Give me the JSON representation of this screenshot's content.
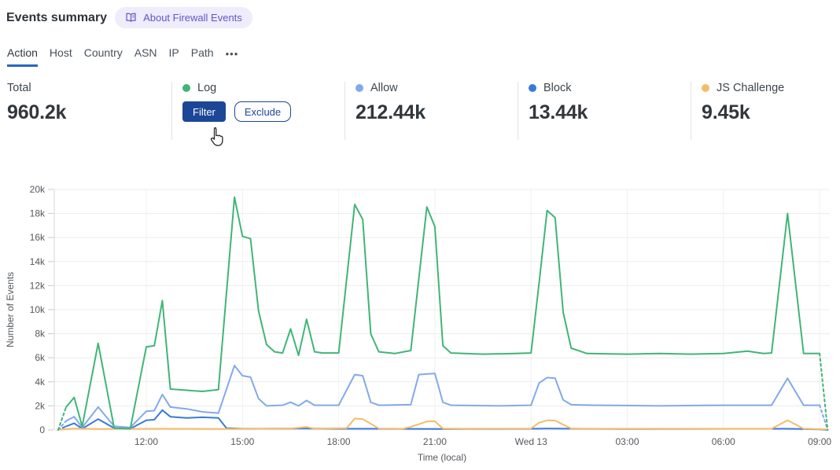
{
  "header": {
    "title": "Events summary",
    "about_badge": "About Firewall Events"
  },
  "tabs": {
    "items": [
      {
        "label": "Action",
        "active": true
      },
      {
        "label": "Host"
      },
      {
        "label": "Country"
      },
      {
        "label": "ASN"
      },
      {
        "label": "IP"
      },
      {
        "label": "Path"
      }
    ],
    "more_label": "•••"
  },
  "stats": {
    "total": {
      "label": "Total",
      "value": "960.2k"
    },
    "cards": [
      {
        "label": "Log",
        "color": "#40b577",
        "buttons": {
          "filter": "Filter",
          "exclude": "Exclude"
        }
      },
      {
        "label": "Allow",
        "value": "212.44k",
        "color": "#82a9ec"
      },
      {
        "label": "Block",
        "value": "13.44k",
        "color": "#3b79d8"
      },
      {
        "label": "JS Challenge",
        "value": "9.45k",
        "color": "#f3bc67"
      }
    ]
  },
  "chart_data": {
    "type": "line",
    "title": "",
    "xlabel": "Time (local)",
    "ylabel": "Number of Events",
    "values_in": "thousands",
    "ylim": [
      0,
      20
    ],
    "grid": true,
    "x_unit": "hours_since_midnight_first_day_24plus_for_next_day",
    "x_range": [
      9.1,
      33.35
    ],
    "y_ticks": [
      {
        "v": 0,
        "label": "0"
      },
      {
        "v": 2,
        "label": "2k"
      },
      {
        "v": 4,
        "label": "4k"
      },
      {
        "v": 6,
        "label": "6k"
      },
      {
        "v": 8,
        "label": "8k"
      },
      {
        "v": 10,
        "label": "10k"
      },
      {
        "v": 12,
        "label": "12k"
      },
      {
        "v": 14,
        "label": "14k"
      },
      {
        "v": 16,
        "label": "16k"
      },
      {
        "v": 18,
        "label": "18k"
      },
      {
        "v": 20,
        "label": "20k"
      }
    ],
    "x_ticks": [
      {
        "t": 12,
        "label": "12:00"
      },
      {
        "t": 15,
        "label": "15:00"
      },
      {
        "t": 18,
        "label": "18:00"
      },
      {
        "t": 21,
        "label": "21:00"
      },
      {
        "t": 24,
        "label": "Wed 13"
      },
      {
        "t": 27,
        "label": "03:00"
      },
      {
        "t": 30,
        "label": "06:00"
      },
      {
        "t": 33,
        "label": "09:00"
      }
    ],
    "series": [
      {
        "name": "Allow",
        "color": "#82a9ec",
        "dash_head": 1,
        "dash_tail": 1,
        "points": [
          [
            9.25,
            0
          ],
          [
            9.5,
            0.75
          ],
          [
            9.75,
            1.1
          ],
          [
            10,
            0.2
          ],
          [
            10.5,
            1.9
          ],
          [
            11,
            0.3
          ],
          [
            11.5,
            0.2
          ],
          [
            12,
            1.55
          ],
          [
            12.25,
            1.6
          ],
          [
            12.5,
            2.95
          ],
          [
            12.75,
            1.9
          ],
          [
            13.25,
            1.75
          ],
          [
            13.75,
            1.5
          ],
          [
            14.25,
            1.4
          ],
          [
            14.75,
            5.35
          ],
          [
            15,
            4.5
          ],
          [
            15.25,
            4.4
          ],
          [
            15.5,
            2.6
          ],
          [
            15.75,
            2.0
          ],
          [
            16.25,
            2.05
          ],
          [
            16.5,
            2.3
          ],
          [
            16.75,
            2.0
          ],
          [
            17,
            2.45
          ],
          [
            17.25,
            2.05
          ],
          [
            18,
            2.05
          ],
          [
            18.5,
            4.6
          ],
          [
            18.75,
            4.5
          ],
          [
            19,
            2.3
          ],
          [
            19.25,
            2.05
          ],
          [
            20.25,
            2.1
          ],
          [
            20.5,
            4.6
          ],
          [
            21,
            4.7
          ],
          [
            21.25,
            2.3
          ],
          [
            21.5,
            2.05
          ],
          [
            23,
            2.0
          ],
          [
            24,
            2.05
          ],
          [
            24.25,
            3.9
          ],
          [
            24.5,
            4.35
          ],
          [
            24.75,
            4.3
          ],
          [
            25,
            2.5
          ],
          [
            25.25,
            2.1
          ],
          [
            26,
            2.05
          ],
          [
            28,
            2.0
          ],
          [
            30,
            2.05
          ],
          [
            31.5,
            2.05
          ],
          [
            32,
            4.3
          ],
          [
            32.5,
            2.05
          ],
          [
            33,
            2.05
          ],
          [
            33.25,
            0
          ]
        ]
      },
      {
        "name": "Block",
        "color": "#3b79d8",
        "dash_head": 1,
        "dash_tail": 0,
        "points": [
          [
            9.25,
            0
          ],
          [
            9.5,
            0.3
          ],
          [
            9.75,
            0.55
          ],
          [
            10,
            0.1
          ],
          [
            10.5,
            0.9
          ],
          [
            11,
            0.15
          ],
          [
            11.5,
            0.1
          ],
          [
            12,
            0.8
          ],
          [
            12.25,
            0.85
          ],
          [
            12.5,
            1.65
          ],
          [
            12.75,
            1.1
          ],
          [
            13.25,
            1.0
          ],
          [
            13.75,
            1.05
          ],
          [
            14.25,
            1.0
          ],
          [
            14.5,
            0.15
          ],
          [
            15,
            0.1
          ],
          [
            17,
            0.12
          ],
          [
            18,
            0.1
          ],
          [
            19,
            0.1
          ],
          [
            21,
            0.08
          ],
          [
            24,
            0.1
          ],
          [
            24.5,
            0.12
          ],
          [
            27,
            0.08
          ],
          [
            30,
            0.1
          ],
          [
            32,
            0.1
          ],
          [
            33,
            0.05
          ],
          [
            33.25,
            0
          ]
        ]
      },
      {
        "name": "JS Challenge",
        "color": "#f3bc67",
        "dash_head": 0,
        "dash_tail": 0,
        "points": [
          [
            9.25,
            0.02
          ],
          [
            9.75,
            0.12
          ],
          [
            10.5,
            0.08
          ],
          [
            12.5,
            0.1
          ],
          [
            14.75,
            0.08
          ],
          [
            16.5,
            0.12
          ],
          [
            17,
            0.25
          ],
          [
            17.25,
            0.1
          ],
          [
            18.25,
            0.15
          ],
          [
            18.5,
            0.95
          ],
          [
            18.75,
            0.9
          ],
          [
            19.25,
            0.12
          ],
          [
            20,
            0.1
          ],
          [
            20.25,
            0.25
          ],
          [
            20.75,
            0.7
          ],
          [
            21,
            0.72
          ],
          [
            21.25,
            0.12
          ],
          [
            22,
            0.1
          ],
          [
            24,
            0.12
          ],
          [
            24.25,
            0.6
          ],
          [
            24.5,
            0.8
          ],
          [
            24.75,
            0.78
          ],
          [
            25.25,
            0.12
          ],
          [
            26,
            0.1
          ],
          [
            28,
            0.1
          ],
          [
            30,
            0.1
          ],
          [
            31.5,
            0.1
          ],
          [
            32,
            0.8
          ],
          [
            32.5,
            0.1
          ],
          [
            33.25,
            0.05
          ]
        ]
      },
      {
        "name": "Log",
        "color": "#40b577",
        "dash_head": 1,
        "dash_tail": 1,
        "points": [
          [
            9.25,
            0
          ],
          [
            9.5,
            1.9
          ],
          [
            9.75,
            2.7
          ],
          [
            10,
            0.3
          ],
          [
            10.5,
            7.2
          ],
          [
            11,
            0.15
          ],
          [
            11.5,
            0.1
          ],
          [
            12,
            6.9
          ],
          [
            12.25,
            7.0
          ],
          [
            12.5,
            10.75
          ],
          [
            12.75,
            3.4
          ],
          [
            13.25,
            3.3
          ],
          [
            13.75,
            3.2
          ],
          [
            14.25,
            3.35
          ],
          [
            14.75,
            19.35
          ],
          [
            15,
            16.1
          ],
          [
            15.25,
            15.9
          ],
          [
            15.5,
            9.9
          ],
          [
            15.75,
            7.1
          ],
          [
            16,
            6.5
          ],
          [
            16.25,
            6.4
          ],
          [
            16.5,
            8.4
          ],
          [
            16.75,
            6.2
          ],
          [
            17,
            9.2
          ],
          [
            17.25,
            6.5
          ],
          [
            17.5,
            6.4
          ],
          [
            18,
            6.4
          ],
          [
            18.5,
            18.75
          ],
          [
            18.75,
            17.5
          ],
          [
            19,
            8.0
          ],
          [
            19.25,
            6.5
          ],
          [
            19.75,
            6.35
          ],
          [
            20.25,
            6.6
          ],
          [
            20.75,
            18.55
          ],
          [
            21,
            16.9
          ],
          [
            21.25,
            7.0
          ],
          [
            21.5,
            6.4
          ],
          [
            22.5,
            6.3
          ],
          [
            23.5,
            6.35
          ],
          [
            24,
            6.4
          ],
          [
            24.25,
            12.2
          ],
          [
            24.5,
            18.25
          ],
          [
            24.75,
            17.65
          ],
          [
            25,
            9.8
          ],
          [
            25.25,
            6.8
          ],
          [
            25.75,
            6.35
          ],
          [
            27,
            6.3
          ],
          [
            28,
            6.35
          ],
          [
            29,
            6.3
          ],
          [
            30,
            6.35
          ],
          [
            30.75,
            6.55
          ],
          [
            31.25,
            6.35
          ],
          [
            31.5,
            6.4
          ],
          [
            32,
            18.0
          ],
          [
            32.5,
            6.35
          ],
          [
            33,
            6.35
          ],
          [
            33.25,
            0
          ]
        ]
      }
    ]
  }
}
